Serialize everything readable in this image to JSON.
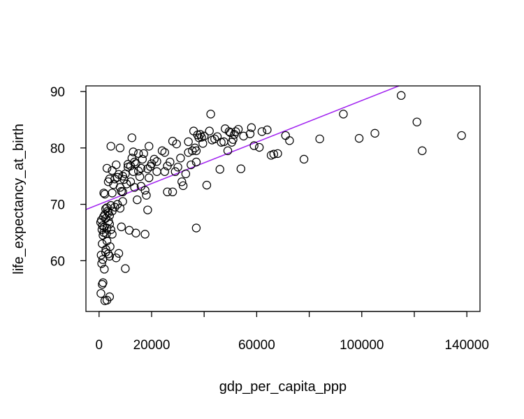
{
  "chart_data": {
    "type": "scatter",
    "title": "",
    "xlabel": "gdp_per_capita_ppp",
    "ylabel": "life_expectancy_at_birth",
    "xlim": [
      -5000,
      145000
    ],
    "ylim": [
      51.0,
      91.0
    ],
    "x_ticks": [
      0,
      20000,
      60000,
      100000,
      140000
    ],
    "x_ticks_minor": [
      40000,
      80000,
      120000
    ],
    "x_tick_labels": [
      "0",
      "20000",
      "60000",
      "100000",
      "140000"
    ],
    "y_ticks": [
      60,
      70,
      80,
      90
    ],
    "y_tick_labels": [
      "60",
      "70",
      "80",
      "90"
    ],
    "grid": false,
    "legend": "none",
    "fit_line": {
      "intercept": 70.0,
      "slope": 0.000184,
      "color": "#a020f0"
    },
    "marker_color": "#000000",
    "points": [
      [
        700,
        54.2
      ],
      [
        1200,
        55.8
      ],
      [
        1500,
        56.1
      ],
      [
        2200,
        52.9
      ],
      [
        3000,
        53.0
      ],
      [
        4000,
        53.6
      ],
      [
        800,
        61.0
      ],
      [
        1000,
        59.5
      ],
      [
        1200,
        63.0
      ],
      [
        1400,
        60.2
      ],
      [
        1800,
        65.0
      ],
      [
        2000,
        58.5
      ],
      [
        2500,
        61.5
      ],
      [
        2600,
        62.0
      ],
      [
        3000,
        63.5
      ],
      [
        3500,
        61.2
      ],
      [
        4000,
        60.8
      ],
      [
        4200,
        62.5
      ],
      [
        600,
        66.8
      ],
      [
        900,
        67.2
      ],
      [
        1100,
        65.5
      ],
      [
        1300,
        66.2
      ],
      [
        1500,
        64.5
      ],
      [
        1700,
        67.8
      ],
      [
        2000,
        66.0
      ],
      [
        2200,
        68.2
      ],
      [
        2500,
        67.5
      ],
      [
        2800,
        64.8
      ],
      [
        3000,
        65.8
      ],
      [
        3300,
        68.8
      ],
      [
        3600,
        67.0
      ],
      [
        4000,
        66.5
      ],
      [
        4500,
        65.5
      ],
      [
        5000,
        64.7
      ],
      [
        2500,
        69.2
      ],
      [
        3000,
        69.4
      ],
      [
        3500,
        68.5
      ],
      [
        4000,
        68.0
      ],
      [
        4500,
        69.8
      ],
      [
        5000,
        68.8
      ],
      [
        6000,
        69.5
      ],
      [
        6500,
        60.5
      ],
      [
        7000,
        70.0
      ],
      [
        7500,
        61.3
      ],
      [
        8000,
        69.3
      ],
      [
        8500,
        66.0
      ],
      [
        9000,
        70.5
      ],
      [
        10000,
        58.6
      ],
      [
        1800,
        72.0
      ],
      [
        2200,
        71.8
      ],
      [
        3000,
        76.4
      ],
      [
        3500,
        74.0
      ],
      [
        4000,
        74.5
      ],
      [
        4500,
        80.3
      ],
      [
        5000,
        72.0
      ],
      [
        5000,
        76.0
      ],
      [
        5500,
        73.5
      ],
      [
        6000,
        74.5
      ],
      [
        6500,
        77.0
      ],
      [
        7000,
        74.8
      ],
      [
        7500,
        75.3
      ],
      [
        8000,
        73.0
      ],
      [
        8000,
        80.0
      ],
      [
        8500,
        72.3
      ],
      [
        9000,
        75.0
      ],
      [
        9000,
        72.2
      ],
      [
        9500,
        74.4
      ],
      [
        10000,
        75.4
      ],
      [
        10500,
        73.6
      ],
      [
        11000,
        77.1
      ],
      [
        11000,
        76.6
      ],
      [
        11500,
        65.4
      ],
      [
        12000,
        74.0
      ],
      [
        12000,
        76.8
      ],
      [
        12500,
        78.2
      ],
      [
        12500,
        81.8
      ],
      [
        13000,
        75.8
      ],
      [
        13000,
        79.3
      ],
      [
        13500,
        73.0
      ],
      [
        13500,
        77.5
      ],
      [
        14000,
        64.9
      ],
      [
        14000,
        77.2
      ],
      [
        14500,
        70.8
      ],
      [
        15000,
        75.9
      ],
      [
        15000,
        79.0
      ],
      [
        15500,
        74.9
      ],
      [
        16000,
        73.2
      ],
      [
        16000,
        76.4
      ],
      [
        16500,
        78.0
      ],
      [
        17000,
        79.0
      ],
      [
        17500,
        72.5
      ],
      [
        17500,
        64.7
      ],
      [
        18000,
        71.6
      ],
      [
        18500,
        69.0
      ],
      [
        18500,
        76.3
      ],
      [
        19000,
        74.7
      ],
      [
        19000,
        80.3
      ],
      [
        19500,
        76.7
      ],
      [
        20000,
        77.2
      ],
      [
        21000,
        78.0
      ],
      [
        22000,
        75.8
      ],
      [
        22000,
        77.6
      ],
      [
        24000,
        79.5
      ],
      [
        25000,
        75.8
      ],
      [
        25000,
        79.2
      ],
      [
        26000,
        72.2
      ],
      [
        26000,
        76.8
      ],
      [
        27000,
        77.5
      ],
      [
        28000,
        81.2
      ],
      [
        28000,
        72.2
      ],
      [
        29000,
        75.8
      ],
      [
        29500,
        80.7
      ],
      [
        30000,
        76.6
      ],
      [
        31000,
        78.2
      ],
      [
        31500,
        74.0
      ],
      [
        32000,
        73.3
      ],
      [
        33000,
        75.4
      ],
      [
        34000,
        81.1
      ],
      [
        34000,
        79.2
      ],
      [
        35000,
        77.0
      ],
      [
        35500,
        79.5
      ],
      [
        36000,
        83.0
      ],
      [
        36500,
        80.0
      ],
      [
        37000,
        79.5
      ],
      [
        37500,
        82.3
      ],
      [
        37000,
        65.8
      ],
      [
        37000,
        77.5
      ],
      [
        38000,
        81.8
      ],
      [
        38500,
        82.4
      ],
      [
        39000,
        81.9
      ],
      [
        39500,
        80.8
      ],
      [
        40000,
        82.1
      ],
      [
        41000,
        73.4
      ],
      [
        42000,
        83.0
      ],
      [
        42500,
        86.0
      ],
      [
        43000,
        81.4
      ],
      [
        44000,
        81.6
      ],
      [
        45000,
        82.0
      ],
      [
        46000,
        76.2
      ],
      [
        46500,
        81.0
      ],
      [
        47500,
        81.1
      ],
      [
        48000,
        83.4
      ],
      [
        49000,
        79.5
      ],
      [
        49500,
        82.9
      ],
      [
        50000,
        82.7
      ],
      [
        50500,
        81.0
      ],
      [
        51000,
        81.5
      ],
      [
        51500,
        82.4
      ],
      [
        52000,
        82.9
      ],
      [
        53000,
        83.3
      ],
      [
        54000,
        76.3
      ],
      [
        55000,
        82.1
      ],
      [
        57500,
        82.5
      ],
      [
        58000,
        83.6
      ],
      [
        59000,
        80.4
      ],
      [
        61000,
        80.1
      ],
      [
        62000,
        82.9
      ],
      [
        64000,
        83.2
      ],
      [
        65500,
        78.7
      ],
      [
        66500,
        78.9
      ],
      [
        68000,
        79.0
      ],
      [
        71000,
        82.2
      ],
      [
        72500,
        81.3
      ],
      [
        78000,
        78.0
      ],
      [
        84000,
        81.6
      ],
      [
        93000,
        86.0
      ],
      [
        99000,
        81.7
      ],
      [
        105000,
        82.6
      ],
      [
        115000,
        89.3
      ],
      [
        121000,
        84.6
      ],
      [
        123000,
        79.5
      ],
      [
        138000,
        82.2
      ]
    ]
  }
}
